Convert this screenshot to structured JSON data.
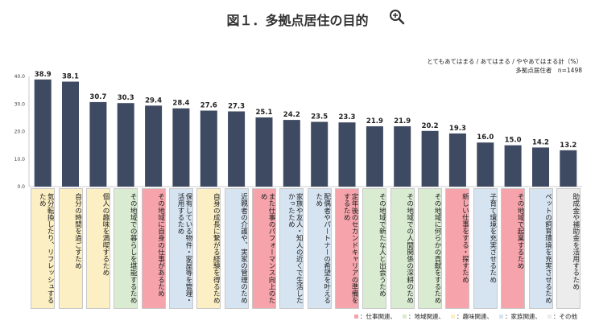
{
  "header": {
    "title": "図１．多拠点居住の目的"
  },
  "icons": {
    "zoom": "zoom-in-icon"
  },
  "notes": {
    "line1": "とてもあてはまる / あてはまる / ややあてはまる計（%）",
    "line2": "多拠点居住者　n=1498"
  },
  "colors": {
    "bar": "#3e4a61",
    "仕事関連": "#f6a3ab",
    "地域関連": "#d9ecd2",
    "趣味関連": "#fcefc3",
    "家族関連": "#d6e4f2",
    "その他": "#ececec"
  },
  "chart_data": {
    "type": "bar",
    "ylim": [
      0,
      40
    ],
    "yticks": [
      "0.0",
      "10.0",
      "20.0",
      "30.0",
      "40.0"
    ],
    "categories": [
      "気分転換したり、リフレッシュするため",
      "自分の時間を過ごすため",
      "個人の趣味を満喫するため",
      "その地域での暮らしを堪能するため",
      "その地域に自身の仕事があるため",
      "保有している物件・家屋等を管理・活用するため",
      "自身の成長に繋がる経験を得るため",
      "近親者の介護や、実家の管理のため",
      "また仕事のパフォーマンス向上のため",
      "家族や友人・知人の近くで生活したかったため",
      "配偶者やパートナーの希望を叶えるため",
      "定年後のセカンドキャリアの準備をするため",
      "その地域で新たな人と出会うため",
      "その地域での人間関係の深耕のため",
      "その地域に何らかの貢献をするため",
      "新しい仕事をする・探すため",
      "子育て環境を充実させるため",
      "その地域で起業するため",
      "ペットの飼育環境を充実させるため",
      "助成金や補助金を活用するため"
    ],
    "values": [
      38.9,
      38.1,
      30.7,
      30.3,
      29.4,
      28.4,
      27.6,
      27.3,
      25.1,
      24.2,
      23.5,
      23.3,
      21.9,
      21.9,
      20.2,
      19.3,
      16.0,
      15.0,
      14.2,
      13.2
    ],
    "value_labels": [
      "38.9",
      "38.1",
      "30.7",
      "30.3",
      "29.4",
      "28.4",
      "27.6",
      "27.3",
      "25.1",
      "24.2",
      "23.5",
      "23.3",
      "21.9",
      "21.9",
      "20.2",
      "19.3",
      "16.0",
      "15.0",
      "14.2",
      "13.2"
    ],
    "groups": [
      "趣味関連",
      "趣味関連",
      "趣味関連",
      "地域関連",
      "仕事関連",
      "家族関連",
      "趣味関連",
      "家族関連",
      "仕事関連",
      "家族関連",
      "家族関連",
      "仕事関連",
      "地域関連",
      "地域関連",
      "地域関連",
      "仕事関連",
      "家族関連",
      "仕事関連",
      "家族関連",
      "その他"
    ],
    "legend": [
      {
        "key": "仕事関連",
        "label": "：仕事関連、"
      },
      {
        "key": "地域関連",
        "label": "：地域関連、"
      },
      {
        "key": "趣味関連",
        "label": "：趣味関連、"
      },
      {
        "key": "家族関連",
        "label": "：家族関連、"
      },
      {
        "key": "その他",
        "label": "：その他"
      }
    ]
  }
}
